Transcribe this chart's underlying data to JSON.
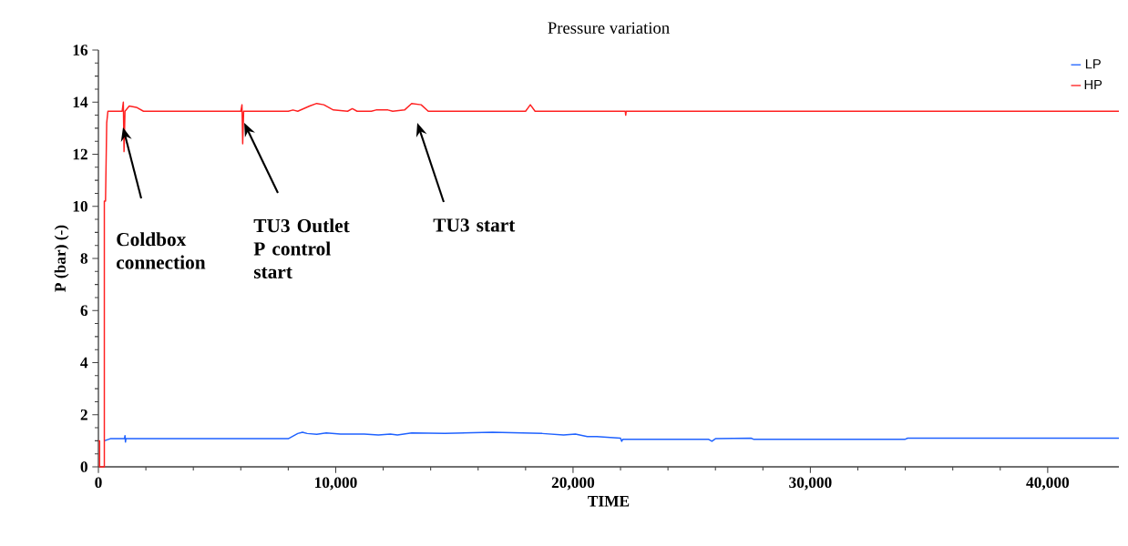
{
  "chart_data": {
    "type": "line",
    "title": "Pressure variation",
    "xlabel": "TIME",
    "ylabel": "P (bar) (-)",
    "xlim": [
      0,
      43000
    ],
    "ylim": [
      0,
      16
    ],
    "xticks": [
      0,
      {
        "value": 10000,
        "label": "10,000"
      },
      {
        "value": 20000,
        "label": "20,000"
      },
      {
        "value": 30000,
        "label": "30,000"
      },
      {
        "value": 40000,
        "label": "40,000"
      }
    ],
    "yticks": [
      0,
      2,
      4,
      6,
      8,
      10,
      12,
      14,
      16
    ],
    "grid": false,
    "legend": "top right",
    "marker": "none",
    "line_style": "solid",
    "series": [
      {
        "name": "LP",
        "color": "#1f62ff",
        "x": [
          250,
          500,
          1100,
          1120,
          1140,
          1160,
          8000,
          8400,
          8600,
          8800,
          9200,
          9600,
          10200,
          11200,
          11800,
          12300,
          12600,
          13200,
          14600,
          16600,
          18700,
          19600,
          20100,
          20600,
          21000,
          22000,
          22050,
          22100,
          25700,
          25850,
          26000,
          27500,
          27600,
          34000,
          34100,
          43000
        ],
        "values": [
          1.0,
          1.08,
          1.08,
          1.2,
          0.95,
          1.08,
          1.08,
          1.28,
          1.33,
          1.28,
          1.25,
          1.3,
          1.26,
          1.26,
          1.22,
          1.26,
          1.22,
          1.3,
          1.28,
          1.33,
          1.28,
          1.22,
          1.26,
          1.16,
          1.16,
          1.1,
          0.98,
          1.06,
          1.06,
          0.98,
          1.08,
          1.1,
          1.06,
          1.06,
          1.1,
          1.1
        ]
      },
      {
        "name": "HP",
        "color": "#ff2020",
        "x": [
          0,
          50,
          50,
          250,
          250,
          300,
          350,
          400,
          1000,
          1050,
          1080,
          1120,
          1300,
          1600,
          1900,
          6000,
          6050,
          6080,
          6120,
          8000,
          8200,
          8400,
          8900,
          9200,
          9500,
          9900,
          10500,
          10700,
          10900,
          11500,
          11700,
          12200,
          12400,
          12900,
          13200,
          13600,
          13900,
          18000,
          18200,
          18400,
          22200,
          22220,
          22240,
          43000
        ],
        "values": [
          1,
          1,
          0,
          0,
          10.2,
          10.2,
          13.2,
          13.65,
          13.65,
          14.0,
          12.1,
          13.65,
          13.85,
          13.8,
          13.65,
          13.65,
          13.9,
          12.4,
          13.65,
          13.65,
          13.7,
          13.65,
          13.85,
          13.95,
          13.9,
          13.7,
          13.65,
          13.75,
          13.65,
          13.65,
          13.7,
          13.7,
          13.65,
          13.7,
          13.95,
          13.9,
          13.65,
          13.65,
          13.9,
          13.65,
          13.65,
          13.5,
          13.65,
          13.65
        ]
      }
    ],
    "annotations": [
      "Coldbox connection",
      "TU3 Outlet P control start",
      "TU3 start"
    ]
  }
}
